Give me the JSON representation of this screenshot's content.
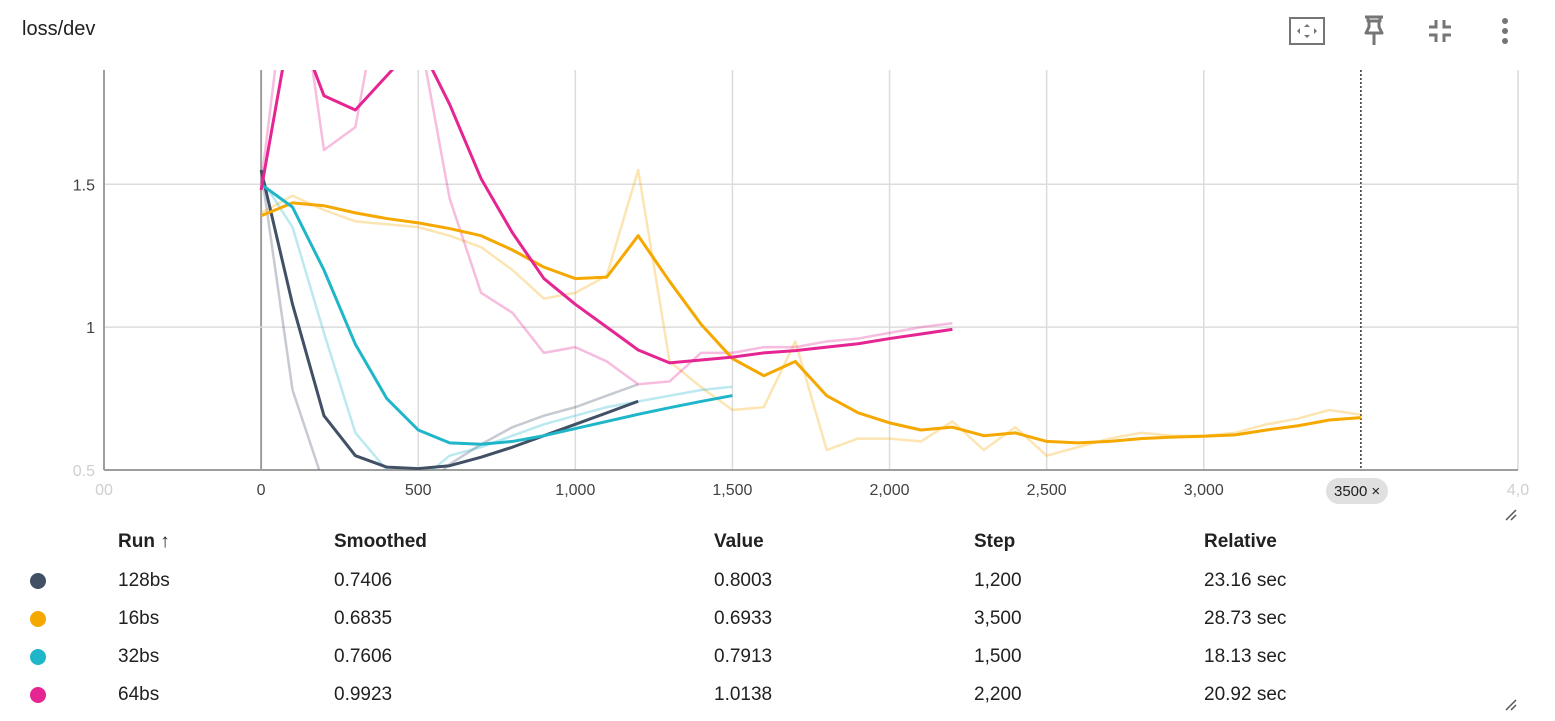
{
  "header": {
    "title": "loss/dev",
    "icons": [
      "fit-domain-icon",
      "pin-icon",
      "collapse-icon",
      "more-vert-icon"
    ]
  },
  "chart_data": {
    "type": "line",
    "title": "loss/dev",
    "xlim": [
      -500,
      4000
    ],
    "ylim": [
      0.5,
      1.9
    ],
    "x_ticks": [
      "0",
      "500",
      "1,000",
      "1,500",
      "2,000",
      "2,500",
      "3,000",
      "4,0"
    ],
    "x_tick_values": [
      0,
      500,
      1000,
      1500,
      2000,
      2500,
      3000,
      4000
    ],
    "x_edge_label": "00",
    "y_ticks": [
      "1",
      "1.5"
    ],
    "y_tick_values": [
      1,
      1.5
    ],
    "y_edge_label": "0.5",
    "grid": true,
    "hover_step": 3500,
    "series": [
      {
        "name": "128bs",
        "color": "#425066",
        "raw_x": [
          0,
          100,
          200,
          300,
          400,
          500,
          600,
          700,
          800,
          900,
          1000,
          1100,
          1200
        ],
        "raw_y": [
          1.55,
          0.78,
          0.45,
          0.4,
          0.41,
          0.42,
          0.52,
          0.59,
          0.65,
          0.69,
          0.72,
          0.76,
          0.8
        ],
        "smoothed_x": [
          0,
          100,
          200,
          300,
          400,
          500,
          600,
          700,
          800,
          900,
          1000,
          1100,
          1200
        ],
        "smoothed_y": [
          1.55,
          1.08,
          0.69,
          0.55,
          0.51,
          0.505,
          0.515,
          0.545,
          0.58,
          0.62,
          0.66,
          0.7,
          0.7406
        ]
      },
      {
        "name": "16bs",
        "color": "#f5a800",
        "raw_x": [
          0,
          100,
          200,
          300,
          400,
          500,
          600,
          700,
          800,
          900,
          1000,
          1100,
          1200,
          1300,
          1400,
          1500,
          1600,
          1700,
          1800,
          1900,
          2000,
          2100,
          2200,
          2300,
          2400,
          2500,
          2600,
          2700,
          2800,
          2900,
          3000,
          3100,
          3200,
          3300,
          3400,
          3500
        ],
        "raw_y": [
          1.4,
          1.46,
          1.41,
          1.37,
          1.36,
          1.35,
          1.32,
          1.28,
          1.2,
          1.1,
          1.12,
          1.18,
          1.55,
          0.88,
          0.79,
          0.71,
          0.72,
          0.95,
          0.57,
          0.61,
          0.61,
          0.6,
          0.67,
          0.57,
          0.65,
          0.55,
          0.58,
          0.61,
          0.63,
          0.62,
          0.62,
          0.63,
          0.66,
          0.68,
          0.71,
          0.6933
        ],
        "smoothed_x": [
          0,
          100,
          200,
          300,
          400,
          500,
          600,
          700,
          800,
          900,
          1000,
          1100,
          1200,
          1300,
          1400,
          1500,
          1600,
          1700,
          1800,
          1900,
          2000,
          2100,
          2200,
          2300,
          2400,
          2500,
          2600,
          2700,
          2800,
          2900,
          3000,
          3100,
          3200,
          3300,
          3400,
          3500
        ],
        "smoothed_y": [
          1.39,
          1.435,
          1.425,
          1.4,
          1.38,
          1.365,
          1.345,
          1.32,
          1.27,
          1.21,
          1.17,
          1.175,
          1.32,
          1.16,
          1.01,
          0.89,
          0.83,
          0.88,
          0.76,
          0.7,
          0.665,
          0.64,
          0.65,
          0.62,
          0.63,
          0.6,
          0.595,
          0.6,
          0.61,
          0.615,
          0.618,
          0.623,
          0.64,
          0.655,
          0.675,
          0.6835
        ]
      },
      {
        "name": "32bs",
        "color": "#1fb6c9",
        "raw_x": [
          0,
          100,
          200,
          300,
          400,
          500,
          600,
          700,
          800,
          900,
          1000,
          1100,
          1200,
          1300,
          1400,
          1500
        ],
        "raw_y": [
          1.52,
          1.35,
          0.98,
          0.63,
          0.5,
          0.46,
          0.55,
          0.58,
          0.62,
          0.66,
          0.69,
          0.72,
          0.74,
          0.76,
          0.78,
          0.7913
        ],
        "smoothed_x": [
          0,
          100,
          200,
          300,
          400,
          500,
          600,
          700,
          800,
          900,
          1000,
          1100,
          1200,
          1300,
          1400,
          1500
        ],
        "smoothed_y": [
          1.5,
          1.42,
          1.2,
          0.94,
          0.75,
          0.64,
          0.595,
          0.59,
          0.6,
          0.62,
          0.645,
          0.67,
          0.695,
          0.718,
          0.74,
          0.7606
        ]
      },
      {
        "name": "64bs",
        "color": "#e52592",
        "raw_x": [
          0,
          100,
          200,
          300,
          400,
          500,
          600,
          700,
          800,
          900,
          1000,
          1100,
          1200,
          1300,
          1400,
          1500,
          1600,
          1700,
          1800,
          1900,
          2000,
          2100,
          2200
        ],
        "raw_y": [
          1.5,
          2.4,
          1.62,
          1.7,
          2.3,
          2.05,
          1.45,
          1.12,
          1.05,
          0.91,
          0.93,
          0.88,
          0.8,
          0.81,
          0.91,
          0.91,
          0.93,
          0.93,
          0.95,
          0.96,
          0.98,
          1.0,
          1.0138
        ],
        "smoothed_x": [
          0,
          100,
          200,
          300,
          400,
          500,
          600,
          700,
          800,
          900,
          1000,
          1100,
          1200,
          1300,
          1400,
          1500,
          1600,
          1700,
          1800,
          1900,
          2000,
          2100,
          2200
        ],
        "smoothed_y": [
          1.48,
          2.1,
          1.81,
          1.76,
          1.88,
          2.0,
          1.78,
          1.52,
          1.33,
          1.17,
          1.08,
          1.0,
          0.92,
          0.875,
          0.885,
          0.895,
          0.91,
          0.918,
          0.93,
          0.942,
          0.96,
          0.976,
          0.9923
        ]
      }
    ]
  },
  "step_chip": {
    "label": "3500",
    "close": "×"
  },
  "table": {
    "headers": {
      "run": "Run ↑",
      "smoothed": "Smoothed",
      "value": "Value",
      "step": "Step",
      "relative": "Relative"
    },
    "rows": [
      {
        "color": "#425066",
        "run": "128bs",
        "smoothed": "0.7406",
        "value": "0.8003",
        "step": "1,200",
        "relative": "23.16 sec"
      },
      {
        "color": "#f5a800",
        "run": "16bs",
        "smoothed": "0.6835",
        "value": "0.6933",
        "step": "3,500",
        "relative": "28.73 sec"
      },
      {
        "color": "#1fb6c9",
        "run": "32bs",
        "smoothed": "0.7606",
        "value": "0.7913",
        "step": "1,500",
        "relative": "18.13 sec"
      },
      {
        "color": "#e52592",
        "run": "64bs",
        "smoothed": "0.9923",
        "value": "1.0138",
        "step": "2,200",
        "relative": "20.92 sec"
      }
    ]
  }
}
